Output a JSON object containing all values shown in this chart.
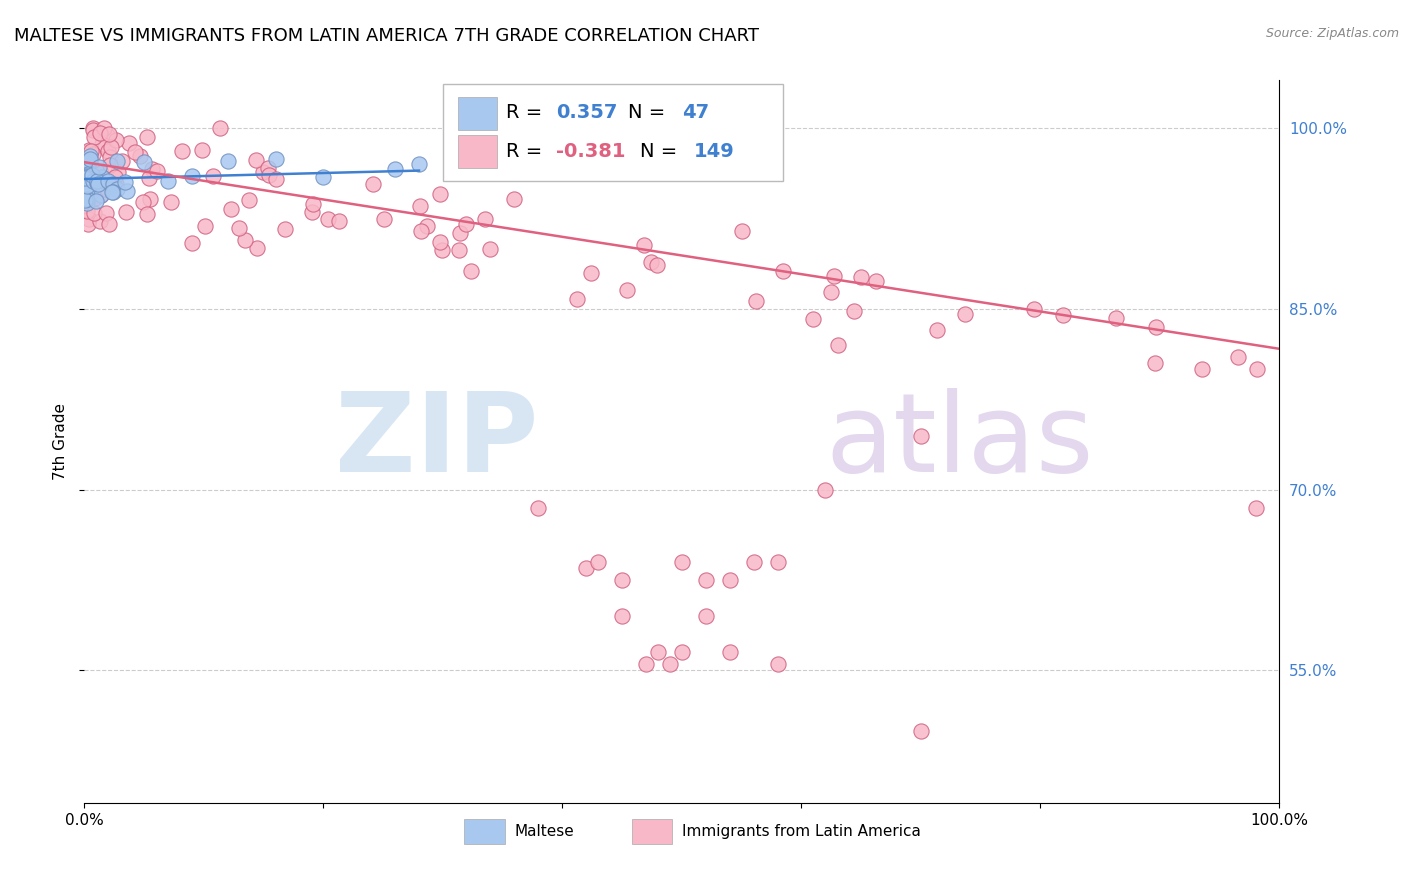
{
  "title": "MALTESE VS IMMIGRANTS FROM LATIN AMERICA 7TH GRADE CORRELATION CHART",
  "source": "Source: ZipAtlas.com",
  "ylabel": "7th Grade",
  "right_ytick_vals": [
    0.55,
    0.7,
    0.85,
    1.0
  ],
  "right_ytick_labels": [
    "55.0%",
    "70.0%",
    "85.0%",
    "100.0%"
  ],
  "legend_blue_r": "0.357",
  "legend_blue_n": "47",
  "legend_pink_r": "-0.381",
  "legend_pink_n": "149",
  "legend_label_blue": "Maltese",
  "legend_label_pink": "Immigrants from Latin America",
  "blue_color": "#A8C8F0",
  "blue_edge_color": "#7090C0",
  "pink_color": "#F8B8C8",
  "pink_edge_color": "#D06080",
  "blue_line_color": "#4080D0",
  "pink_line_color": "#E06080",
  "watermark_zip_color": "#C8DCF0",
  "watermark_atlas_color": "#D8C8E8",
  "title_fontsize": 13,
  "axis_label_fontsize": 11,
  "legend_fontsize": 14,
  "marker_size": 120,
  "blue_line_intercept": 0.958,
  "blue_line_slope": 0.025,
  "blue_line_xmax": 0.28,
  "pink_line_intercept": 0.972,
  "pink_line_slope": -0.155,
  "pink_line_xmin": 0.0,
  "pink_line_xmax": 1.0,
  "xlim": [
    0.0,
    1.0
  ],
  "ylim": [
    0.44,
    1.04
  ]
}
